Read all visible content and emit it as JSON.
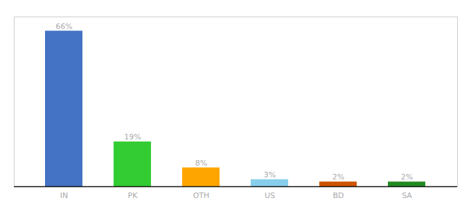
{
  "chart_data": {
    "type": "bar",
    "categories": [
      "IN",
      "PK",
      "OTH",
      "US",
      "BD",
      "SA"
    ],
    "values": [
      66,
      19,
      8,
      3,
      2,
      2
    ],
    "value_labels": [
      "66%",
      "19%",
      "8%",
      "3%",
      "2%",
      "2%"
    ],
    "colors": [
      "#4472C4",
      "#33CC33",
      "#FFA500",
      "#87CEEB",
      "#CC5500",
      "#228B22"
    ],
    "ylim": [
      0,
      72
    ],
    "data_labels": true,
    "tick_labels": "x",
    "grid": false
  }
}
